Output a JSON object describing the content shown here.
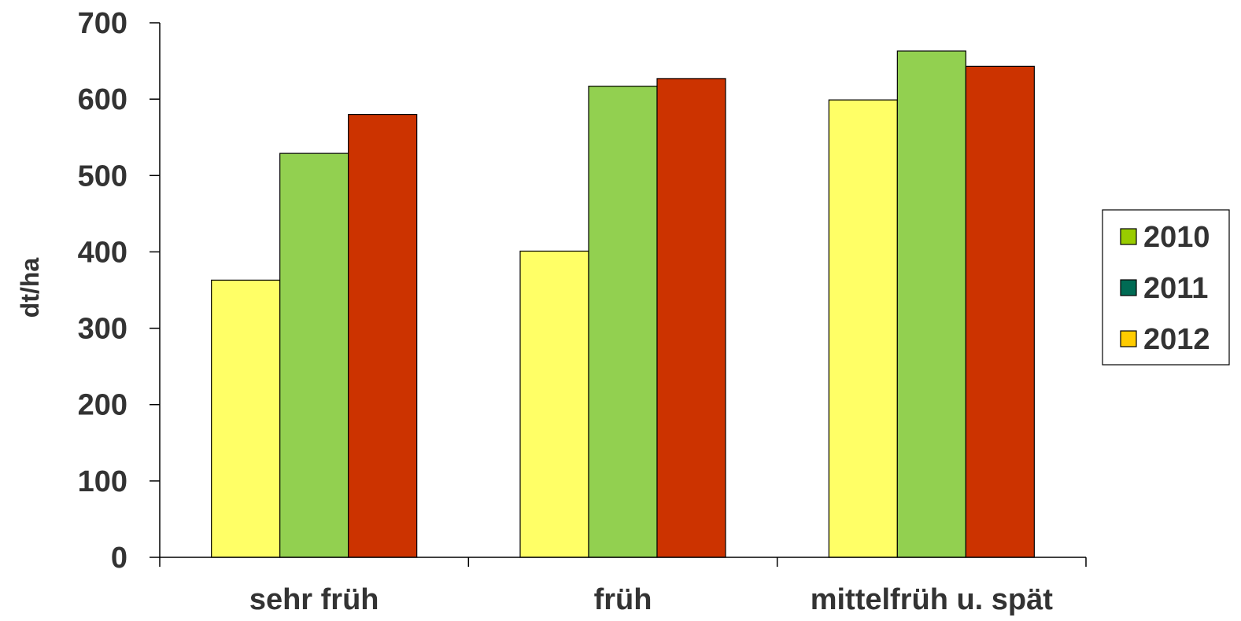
{
  "chart_data": {
    "type": "bar",
    "categories": [
      "sehr früh",
      "früh",
      "mittelfrüh u. spät"
    ],
    "ylabel": "dt/ha",
    "xlabel": "",
    "ylim": [
      0,
      700
    ],
    "yticks": [
      "0",
      "100",
      "200",
      "300",
      "400",
      "500",
      "600",
      "700"
    ],
    "grid": false,
    "legend_position": "right",
    "series": [
      {
        "name": "2010",
        "values": [
          363,
          401,
          599
        ],
        "bar_color": "#FFFF66",
        "legend_color": "#99CC00"
      },
      {
        "name": "2011",
        "values": [
          529,
          617,
          663
        ],
        "bar_color": "#92D050",
        "legend_color": "#006B54"
      },
      {
        "name": "2012",
        "values": [
          580,
          627,
          643
        ],
        "bar_color": "#CC3300",
        "legend_color": "#FFCC00"
      }
    ]
  }
}
